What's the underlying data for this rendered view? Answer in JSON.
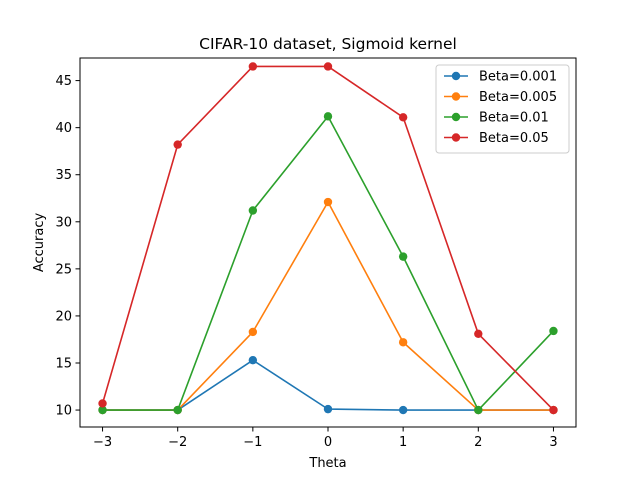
{
  "chart_data": {
    "type": "line",
    "title": "CIFAR-10 dataset, Sigmoid kernel",
    "xlabel": "Theta",
    "ylabel": "Accuracy",
    "x": [
      -3,
      -2,
      -1,
      0,
      1,
      2,
      3
    ],
    "x_ticks": [
      -3,
      -2,
      -1,
      0,
      1,
      2,
      3
    ],
    "x_tick_labels": [
      "−3",
      "−2",
      "−1",
      "0",
      "1",
      "2",
      "3"
    ],
    "y_ticks": [
      10,
      15,
      20,
      25,
      30,
      35,
      40,
      45
    ],
    "y_tick_labels": [
      "10",
      "15",
      "20",
      "25",
      "30",
      "35",
      "40",
      "45"
    ],
    "xlim": [
      -3.3,
      3.3
    ],
    "ylim": [
      8.2,
      47.4
    ],
    "grid": false,
    "legend_position": "top-right",
    "marker": "circle",
    "series": [
      {
        "name": "Beta=0.001",
        "color": "#1f77b4",
        "values": [
          10.0,
          10.0,
          15.3,
          10.1,
          10.0,
          10.0,
          10.0
        ]
      },
      {
        "name": "Beta=0.005",
        "color": "#ff7f0e",
        "values": [
          10.0,
          10.0,
          18.3,
          32.1,
          17.2,
          10.0,
          10.0
        ]
      },
      {
        "name": "Beta=0.01",
        "color": "#2ca02c",
        "values": [
          10.0,
          10.0,
          31.2,
          41.2,
          26.3,
          10.0,
          18.4
        ]
      },
      {
        "name": "Beta=0.05",
        "color": "#d62728",
        "values": [
          10.7,
          38.2,
          46.5,
          46.5,
          41.1,
          18.1,
          10.0
        ]
      }
    ]
  }
}
